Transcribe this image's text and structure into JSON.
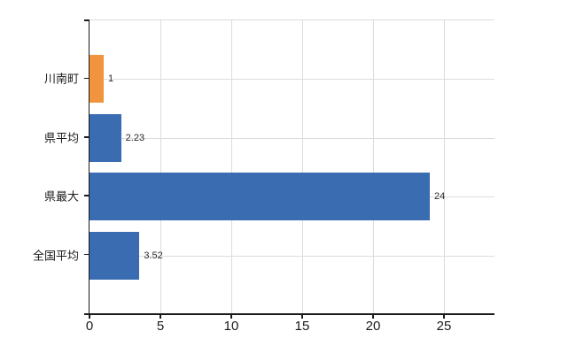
{
  "chart_data": {
    "type": "bar",
    "orientation": "horizontal",
    "title": "",
    "xlabel": "",
    "ylabel": "",
    "categories": [
      "川南町",
      "県平均",
      "県最大",
      "全国平均"
    ],
    "values": [
      1,
      2.23,
      24,
      3.52
    ],
    "value_labels": [
      "1",
      "2.23",
      "24",
      "3.52"
    ],
    "bar_colors": [
      "#f0943d",
      "#3a6cb2",
      "#3a6cb2",
      "#3a6cb2"
    ],
    "x_ticks": [
      0,
      5,
      10,
      15,
      20,
      25
    ],
    "x_tick_labels": [
      "0",
      "5",
      "10",
      "15",
      "20",
      "25"
    ],
    "xlim": [
      0,
      28.5625
    ],
    "grid": true,
    "legend": null
  },
  "colors": {
    "bar_orange": "#f0943d",
    "bar_blue": "#3a6cb2",
    "axis": "#1a1a1a",
    "grid": "#dcdcdc",
    "value_label": "#2b2b2b",
    "tick_label": "#1a1a1a"
  }
}
